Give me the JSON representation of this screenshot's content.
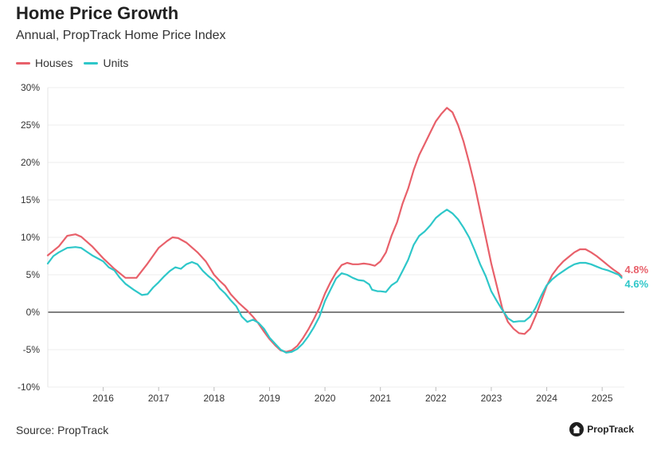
{
  "chart_data": {
    "type": "line",
    "title": "Home Price Growth",
    "subtitle": "Annual, PropTrack Home Price Index",
    "xlabel": "",
    "ylabel": "",
    "xlim": [
      2015.0,
      2025.4
    ],
    "ylim": [
      -10,
      30
    ],
    "y_ticks": [
      -10,
      -5,
      0,
      5,
      10,
      15,
      20,
      25,
      30
    ],
    "y_tick_labels": [
      "-10%",
      "-5%",
      "0%",
      "5%",
      "10%",
      "15%",
      "20%",
      "25%",
      "30%"
    ],
    "x_ticks": [
      2016,
      2017,
      2018,
      2019,
      2020,
      2021,
      2022,
      2023,
      2024,
      2025
    ],
    "x_tick_labels": [
      "2016",
      "2017",
      "2018",
      "2019",
      "2020",
      "2021",
      "2022",
      "2023",
      "2024",
      "2025"
    ],
    "legend": "top-left",
    "grid": "horizontal",
    "series": [
      {
        "name": "Houses",
        "color": "#e8606a",
        "end_label": "4.8%",
        "points": [
          [
            2015.0,
            7.6
          ],
          [
            2015.2,
            8.8
          ],
          [
            2015.35,
            10.2
          ],
          [
            2015.5,
            10.4
          ],
          [
            2015.6,
            10.1
          ],
          [
            2015.8,
            8.8
          ],
          [
            2016.0,
            7.2
          ],
          [
            2016.2,
            5.8
          ],
          [
            2016.4,
            4.6
          ],
          [
            2016.6,
            4.6
          ],
          [
            2016.8,
            6.5
          ],
          [
            2017.0,
            8.6
          ],
          [
            2017.15,
            9.5
          ],
          [
            2017.25,
            10.0
          ],
          [
            2017.35,
            9.9
          ],
          [
            2017.5,
            9.3
          ],
          [
            2017.7,
            8.0
          ],
          [
            2017.85,
            6.8
          ],
          [
            2017.9,
            6.2
          ],
          [
            2018.0,
            5.0
          ],
          [
            2018.1,
            4.2
          ],
          [
            2018.2,
            3.5
          ],
          [
            2018.3,
            2.4
          ],
          [
            2018.45,
            1.2
          ],
          [
            2018.6,
            0.2
          ],
          [
            2018.7,
            -0.6
          ],
          [
            2018.8,
            -1.5
          ],
          [
            2018.9,
            -2.6
          ],
          [
            2019.0,
            -3.6
          ],
          [
            2019.1,
            -4.4
          ],
          [
            2019.2,
            -5.1
          ],
          [
            2019.3,
            -5.3
          ],
          [
            2019.4,
            -5.1
          ],
          [
            2019.5,
            -4.5
          ],
          [
            2019.6,
            -3.5
          ],
          [
            2019.7,
            -2.3
          ],
          [
            2019.8,
            -0.9
          ],
          [
            2019.9,
            0.6
          ],
          [
            2020.0,
            2.5
          ],
          [
            2020.1,
            4.0
          ],
          [
            2020.2,
            5.3
          ],
          [
            2020.3,
            6.3
          ],
          [
            2020.4,
            6.6
          ],
          [
            2020.5,
            6.4
          ],
          [
            2020.6,
            6.4
          ],
          [
            2020.7,
            6.5
          ],
          [
            2020.8,
            6.4
          ],
          [
            2020.9,
            6.2
          ],
          [
            2021.0,
            6.8
          ],
          [
            2021.1,
            8.0
          ],
          [
            2021.2,
            10.2
          ],
          [
            2021.3,
            12.0
          ],
          [
            2021.4,
            14.5
          ],
          [
            2021.5,
            16.5
          ],
          [
            2021.6,
            19.0
          ],
          [
            2021.7,
            21.0
          ],
          [
            2021.8,
            22.5
          ],
          [
            2021.9,
            24.0
          ],
          [
            2022.0,
            25.5
          ],
          [
            2022.1,
            26.5
          ],
          [
            2022.2,
            27.3
          ],
          [
            2022.3,
            26.7
          ],
          [
            2022.4,
            25.0
          ],
          [
            2022.5,
            22.8
          ],
          [
            2022.6,
            20.0
          ],
          [
            2022.7,
            17.0
          ],
          [
            2022.8,
            13.5
          ],
          [
            2022.9,
            10.0
          ],
          [
            2023.0,
            6.5
          ],
          [
            2023.1,
            3.5
          ],
          [
            2023.2,
            0.5
          ],
          [
            2023.3,
            -1.3
          ],
          [
            2023.4,
            -2.2
          ],
          [
            2023.5,
            -2.8
          ],
          [
            2023.6,
            -2.9
          ],
          [
            2023.7,
            -2.2
          ],
          [
            2023.8,
            -0.5
          ],
          [
            2023.9,
            1.5
          ],
          [
            2024.0,
            3.5
          ],
          [
            2024.1,
            5.0
          ],
          [
            2024.2,
            6.0
          ],
          [
            2024.3,
            6.8
          ],
          [
            2024.4,
            7.4
          ],
          [
            2024.5,
            8.0
          ],
          [
            2024.6,
            8.4
          ],
          [
            2024.7,
            8.4
          ],
          [
            2024.8,
            8.0
          ],
          [
            2024.9,
            7.5
          ],
          [
            2025.0,
            6.9
          ],
          [
            2025.1,
            6.3
          ],
          [
            2025.2,
            5.7
          ],
          [
            2025.3,
            5.2
          ],
          [
            2025.35,
            4.8
          ]
        ]
      },
      {
        "name": "Units",
        "color": "#2ec7c9",
        "end_label": "4.6%",
        "points": [
          [
            2015.0,
            6.5
          ],
          [
            2015.1,
            7.5
          ],
          [
            2015.2,
            8.0
          ],
          [
            2015.35,
            8.6
          ],
          [
            2015.5,
            8.7
          ],
          [
            2015.6,
            8.6
          ],
          [
            2015.7,
            8.1
          ],
          [
            2015.8,
            7.6
          ],
          [
            2016.0,
            6.8
          ],
          [
            2016.1,
            6.0
          ],
          [
            2016.2,
            5.6
          ],
          [
            2016.3,
            4.6
          ],
          [
            2016.4,
            3.8
          ],
          [
            2016.55,
            3.0
          ],
          [
            2016.7,
            2.3
          ],
          [
            2016.8,
            2.4
          ],
          [
            2016.9,
            3.3
          ],
          [
            2017.0,
            4.0
          ],
          [
            2017.1,
            4.8
          ],
          [
            2017.2,
            5.5
          ],
          [
            2017.3,
            6.0
          ],
          [
            2017.4,
            5.8
          ],
          [
            2017.5,
            6.4
          ],
          [
            2017.6,
            6.7
          ],
          [
            2017.7,
            6.4
          ],
          [
            2017.8,
            5.5
          ],
          [
            2017.9,
            4.8
          ],
          [
            2018.0,
            4.2
          ],
          [
            2018.1,
            3.2
          ],
          [
            2018.2,
            2.5
          ],
          [
            2018.3,
            1.6
          ],
          [
            2018.4,
            0.8
          ],
          [
            2018.5,
            -0.6
          ],
          [
            2018.6,
            -1.3
          ],
          [
            2018.7,
            -1.0
          ],
          [
            2018.8,
            -1.4
          ],
          [
            2018.9,
            -2.2
          ],
          [
            2019.0,
            -3.4
          ],
          [
            2019.1,
            -4.2
          ],
          [
            2019.2,
            -5.0
          ],
          [
            2019.3,
            -5.4
          ],
          [
            2019.4,
            -5.3
          ],
          [
            2019.5,
            -4.9
          ],
          [
            2019.6,
            -4.2
          ],
          [
            2019.7,
            -3.2
          ],
          [
            2019.8,
            -2.0
          ],
          [
            2019.9,
            -0.6
          ],
          [
            2020.0,
            1.5
          ],
          [
            2020.1,
            3.0
          ],
          [
            2020.2,
            4.5
          ],
          [
            2020.3,
            5.2
          ],
          [
            2020.4,
            5.0
          ],
          [
            2020.5,
            4.6
          ],
          [
            2020.6,
            4.3
          ],
          [
            2020.7,
            4.2
          ],
          [
            2020.8,
            3.7
          ],
          [
            2020.85,
            3.0
          ],
          [
            2020.95,
            2.8
          ],
          [
            2021.0,
            2.8
          ],
          [
            2021.1,
            2.7
          ],
          [
            2021.2,
            3.6
          ],
          [
            2021.3,
            4.1
          ],
          [
            2021.4,
            5.5
          ],
          [
            2021.5,
            7.0
          ],
          [
            2021.6,
            9.0
          ],
          [
            2021.7,
            10.2
          ],
          [
            2021.8,
            10.8
          ],
          [
            2021.9,
            11.6
          ],
          [
            2022.0,
            12.6
          ],
          [
            2022.1,
            13.2
          ],
          [
            2022.2,
            13.7
          ],
          [
            2022.3,
            13.2
          ],
          [
            2022.4,
            12.4
          ],
          [
            2022.5,
            11.3
          ],
          [
            2022.6,
            10.0
          ],
          [
            2022.7,
            8.3
          ],
          [
            2022.8,
            6.4
          ],
          [
            2022.9,
            4.8
          ],
          [
            2023.0,
            2.8
          ],
          [
            2023.1,
            1.5
          ],
          [
            2023.2,
            0.3
          ],
          [
            2023.3,
            -0.8
          ],
          [
            2023.4,
            -1.3
          ],
          [
            2023.5,
            -1.2
          ],
          [
            2023.6,
            -1.2
          ],
          [
            2023.7,
            -0.6
          ],
          [
            2023.8,
            0.6
          ],
          [
            2023.9,
            2.2
          ],
          [
            2024.0,
            3.6
          ],
          [
            2024.1,
            4.4
          ],
          [
            2024.2,
            5.0
          ],
          [
            2024.3,
            5.5
          ],
          [
            2024.4,
            6.0
          ],
          [
            2024.5,
            6.4
          ],
          [
            2024.6,
            6.6
          ],
          [
            2024.7,
            6.6
          ],
          [
            2024.8,
            6.4
          ],
          [
            2024.9,
            6.1
          ],
          [
            2025.0,
            5.8
          ],
          [
            2025.1,
            5.6
          ],
          [
            2025.2,
            5.3
          ],
          [
            2025.3,
            5.0
          ],
          [
            2025.35,
            4.6
          ]
        ]
      }
    ],
    "source": "Source: PropTrack"
  },
  "brand": {
    "logo_text": "PropTrack"
  }
}
